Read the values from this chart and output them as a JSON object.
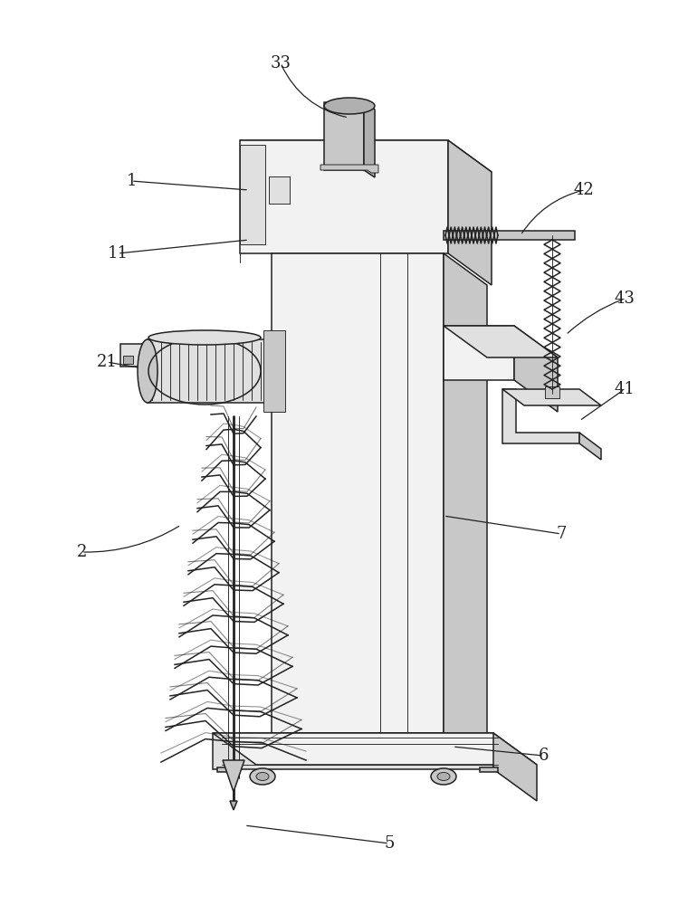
{
  "bg_color": "#ffffff",
  "lc": "#222222",
  "lw": 1.1,
  "tlw": 0.65,
  "thkw": 2.0,
  "fig_w": 7.6,
  "fig_h": 10.0,
  "gray1": "#f2f2f2",
  "gray2": "#e0e0e0",
  "gray3": "#c8c8c8",
  "gray4": "#b0b0b0",
  "gray5": "#d8d8d8"
}
